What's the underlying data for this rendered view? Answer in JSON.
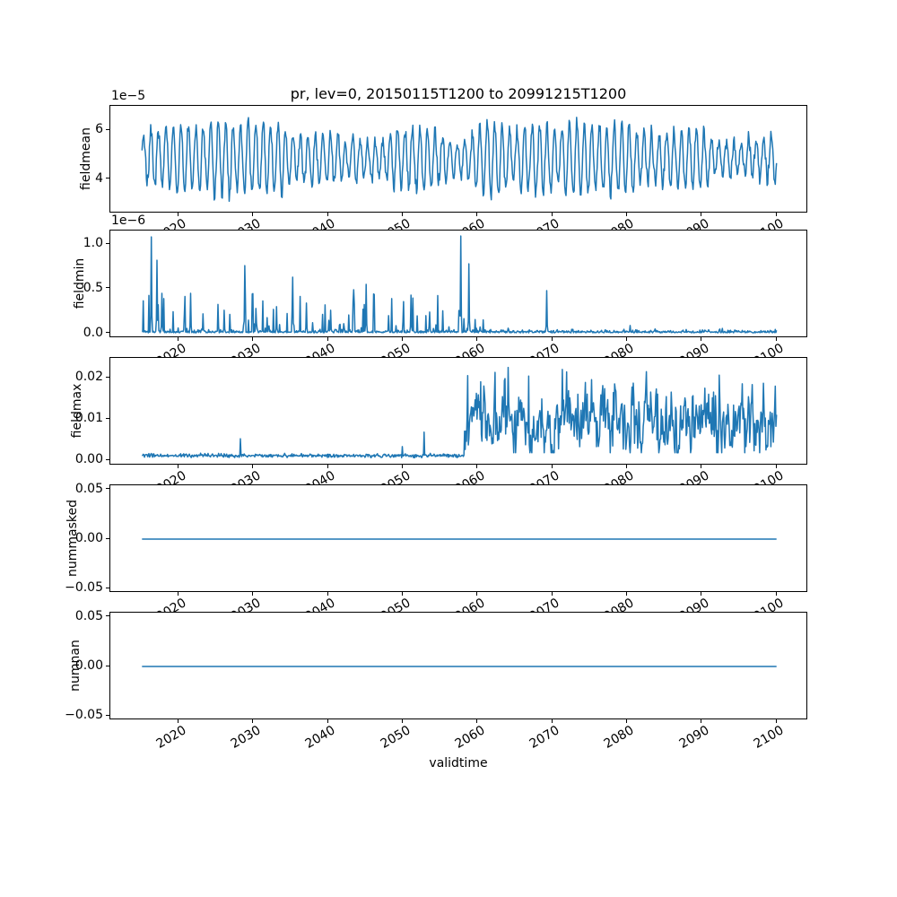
{
  "figure": {
    "title": "pr, lev=0, 20150115T1200 to 20991215T1200",
    "xlabel": "validtime",
    "background_color": "#ffffff",
    "line_color": "#1f77b4",
    "axis_color": "#000000"
  },
  "chart_data": {
    "type": "line",
    "title": "pr, lev=0, 20150115T1200 to 20991215T1200",
    "xlabel": "validtime",
    "grid": false,
    "legend": false,
    "x": {
      "start": 2015.04,
      "end": 2099.96,
      "points_per_year": 12,
      "xlim": [
        2010.8,
        2104.2
      ],
      "xticks": [
        2020,
        2030,
        2040,
        2050,
        2060,
        2070,
        2080,
        2090,
        2100
      ],
      "xtick_labels": [
        "2020",
        "2030",
        "2040",
        "2050",
        "2060",
        "2070",
        "2080",
        "2090",
        "2100"
      ],
      "tick_rotation_deg": 30
    },
    "subplots": [
      {
        "ylabel": "fieldmean",
        "offset_text": "1e−5",
        "ylim": [
          2.6e-05,
          7e-05
        ],
        "yticks": [
          {
            "value": 4e-05,
            "label": "4"
          },
          {
            "value": 6e-05,
            "label": "6"
          }
        ],
        "series": {
          "kind": "seasonal",
          "seed": 7,
          "base": 4.85e-05,
          "amp": 1.1e-05,
          "noise": 3.2e-06,
          "clamp": [
            3.05e-05,
            6.85e-05
          ],
          "period_years": 1
        }
      },
      {
        "ylabel": "fieldmin",
        "offset_text": "1e−6",
        "ylim": [
          -5.2e-08,
          1.152e-06
        ],
        "yticks": [
          {
            "value": 0,
            "label": "0.0"
          },
          {
            "value": 5e-07,
            "label": "0.5"
          },
          {
            "value": 1e-06,
            "label": "1.0"
          }
        ],
        "series": {
          "kind": "spiky",
          "seed": 21,
          "base": 8e-09,
          "noise": 1.4e-08,
          "active_until": 2061,
          "minor_spike_rate_before": 0.3,
          "minor_spike_max_before": 4.6e-07,
          "minor_spike_rate_after": 0.05,
          "minor_spike_max_after": 6e-08,
          "spikes": [
            [
              2016.3,
              1.08e-06
            ],
            [
              2017.0,
              8.2e-07
            ],
            [
              2017.7,
              4.5e-07
            ],
            [
              2021.5,
              4.5e-07
            ],
            [
              2023.2,
              2.2e-07
            ],
            [
              2026.0,
              2.6e-07
            ],
            [
              2028.8,
              7.6e-07
            ],
            [
              2030.3,
              2.8e-07
            ],
            [
              2033.0,
              3e-07
            ],
            [
              2035.2,
              6.3e-07
            ],
            [
              2037.0,
              3.4e-07
            ],
            [
              2040.3,
              2.6e-07
            ],
            [
              2043.4,
              4.9e-07
            ],
            [
              2045.0,
              5.5e-07
            ],
            [
              2048.0,
              2e-07
            ],
            [
              2051.0,
              4.3e-07
            ],
            [
              2053.5,
              2.4e-07
            ],
            [
              2057.7,
              1.09e-06
            ],
            [
              2058.8,
              7.8e-07
            ],
            [
              2064.0,
              6e-08
            ],
            [
              2069.2,
              4.8e-07
            ],
            [
              2080.4,
              9e-08
            ],
            [
              2092.4,
              5e-08
            ]
          ]
        }
      },
      {
        "ylabel": "fieldmax",
        "offset_text": "",
        "ylim": [
          -0.0013,
          0.0248
        ],
        "yticks": [
          {
            "value": 0,
            "label": "0.00"
          },
          {
            "value": 0.01,
            "label": "0.01"
          },
          {
            "value": 0.02,
            "label": "0.02"
          }
        ],
        "series": {
          "kind": "regime",
          "seed": 33,
          "break_x": 2058.2,
          "before": {
            "base": 0.0011,
            "noise": 0.00022,
            "min": 0.0006,
            "max": 0.0021
          },
          "after": {
            "mean": 0.0092,
            "sd": 0.0038,
            "ar": 0.45,
            "min": 0.0018,
            "max": 0.0226
          },
          "spikes": [
            [
              2028.2,
              0.0052
            ],
            [
              2049.9,
              0.0033
            ],
            [
              2052.8,
              0.0068
            ],
            [
              2058.6,
              0.0205
            ],
            [
              2060.4,
              0.019
            ],
            [
              2062.3,
              0.0213
            ],
            [
              2064.0,
              0.0225
            ],
            [
              2066.8,
              0.0204
            ],
            [
              2071.3,
              0.022
            ],
            [
              2071.9,
              0.0214
            ],
            [
              2078.3,
              0.0185
            ],
            [
              2092.3,
              0.0206
            ]
          ]
        }
      },
      {
        "ylabel": "nummasked",
        "offset_text": "",
        "ylim": [
          -0.0545,
          0.0545
        ],
        "yticks": [
          {
            "value": -0.05,
            "label": "−0.05"
          },
          {
            "value": 0,
            "label": "0.00"
          },
          {
            "value": 0.05,
            "label": "0.05"
          }
        ],
        "series": {
          "kind": "constant",
          "value": 0
        }
      },
      {
        "ylabel": "numnan",
        "offset_text": "",
        "ylim": [
          -0.0545,
          0.0545
        ],
        "yticks": [
          {
            "value": -0.05,
            "label": "−0.05"
          },
          {
            "value": 0,
            "label": "0.00"
          },
          {
            "value": 0.05,
            "label": "0.05"
          }
        ],
        "series": {
          "kind": "constant",
          "value": 0
        }
      }
    ]
  }
}
